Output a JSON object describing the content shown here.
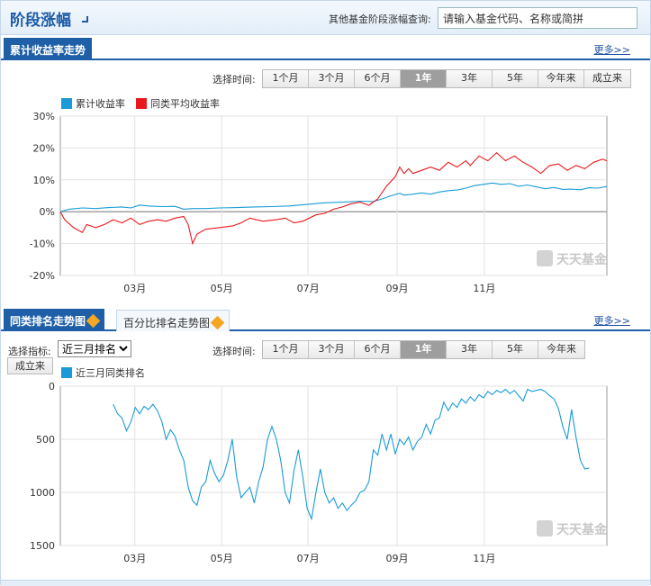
{
  "header": {
    "title": "阶段涨幅",
    "search_label": "其他基金阶段涨幅查询:",
    "search_placeholder": "请输入基金代码、名称或简拼"
  },
  "section1": {
    "tab_label": "累计收益率走势",
    "more_label": "更多>>",
    "time_label": "选择时间:",
    "time_options": [
      "1个月",
      "3个月",
      "6个月",
      "1年",
      "3年",
      "5年",
      "今年来",
      "成立来"
    ],
    "active_index": 3
  },
  "section2": {
    "tab_label": "同类排名走势图",
    "tab2_label": "百分比排名走势图",
    "more_label": "更多>>",
    "indicator_label": "选择指标:",
    "indicator_value": "近三月排名",
    "time_label": "选择时间:",
    "time_options": [
      "1个月",
      "3个月",
      "6个月",
      "1年",
      "3年",
      "5年",
      "今年来"
    ],
    "active_index": 3,
    "since_label": "成立来"
  },
  "colors": {
    "series_blue": "#1a9bd7",
    "series_red": "#e8191c",
    "brand_blue": "#1f5fa7"
  },
  "chart_data": [
    {
      "type": "line",
      "title": "",
      "xlabel": "",
      "ylabel": "",
      "ylim": [
        -20,
        30
      ],
      "y_ticks": [
        30,
        20,
        10,
        0,
        -10,
        -20
      ],
      "y_tick_suffix": "%",
      "x_ticks": [
        "03月",
        "05月",
        "07月",
        "09月",
        "11月"
      ],
      "x_tick_pos": [
        0.169,
        0.366,
        0.562,
        0.764,
        0.962
      ],
      "legend_position": "top-left",
      "grid": true,
      "watermark": "天天基金",
      "series": [
        {
          "name": "累计收益率",
          "color": "#1a9bd7",
          "points": [
            [
              0.0,
              0
            ],
            [
              0.02,
              0.8
            ],
            [
              0.05,
              1.2
            ],
            [
              0.08,
              1.0
            ],
            [
              0.11,
              1.3
            ],
            [
              0.14,
              1.5
            ],
            [
              0.16,
              1.2
            ],
            [
              0.18,
              2.1
            ],
            [
              0.2,
              1.8
            ],
            [
              0.23,
              1.6
            ],
            [
              0.26,
              1.7
            ],
            [
              0.28,
              0.8
            ],
            [
              0.3,
              1.0
            ],
            [
              0.33,
              1.0
            ],
            [
              0.36,
              1.2
            ],
            [
              0.4,
              1.3
            ],
            [
              0.44,
              1.5
            ],
            [
              0.48,
              1.6
            ],
            [
              0.52,
              1.8
            ],
            [
              0.56,
              2.3
            ],
            [
              0.6,
              2.8
            ],
            [
              0.64,
              3.0
            ],
            [
              0.68,
              3.3
            ],
            [
              0.71,
              3.2
            ],
            [
              0.73,
              4.0
            ],
            [
              0.75,
              5.0
            ],
            [
              0.77,
              5.8
            ],
            [
              0.78,
              5.2
            ],
            [
              0.8,
              5.5
            ],
            [
              0.82,
              5.9
            ],
            [
              0.84,
              5.5
            ],
            [
              0.86,
              6.2
            ],
            [
              0.88,
              6.6
            ],
            [
              0.9,
              6.8
            ],
            [
              0.92,
              7.4
            ],
            [
              0.94,
              8.2
            ],
            [
              0.96,
              8.6
            ],
            [
              0.98,
              9.0
            ],
            [
              1.0,
              8.6
            ],
            [
              1.02,
              8.8
            ],
            [
              1.04,
              8.0
            ],
            [
              1.06,
              8.4
            ],
            [
              1.08,
              7.8
            ],
            [
              1.1,
              7.2
            ],
            [
              1.12,
              7.6
            ],
            [
              1.14,
              7.0
            ],
            [
              1.16,
              7.1
            ],
            [
              1.18,
              6.9
            ],
            [
              1.2,
              7.5
            ],
            [
              1.22,
              7.4
            ],
            [
              1.24,
              7.9
            ]
          ]
        },
        {
          "name": "同类平均收益率",
          "color": "#e8191c",
          "points": [
            [
              0.0,
              0
            ],
            [
              0.01,
              -2.5
            ],
            [
              0.03,
              -5.0
            ],
            [
              0.05,
              -6.5
            ],
            [
              0.06,
              -4.0
            ],
            [
              0.08,
              -5.0
            ],
            [
              0.1,
              -4.0
            ],
            [
              0.12,
              -2.5
            ],
            [
              0.14,
              -3.5
            ],
            [
              0.16,
              -2.0
            ],
            [
              0.18,
              -4.0
            ],
            [
              0.2,
              -3.0
            ],
            [
              0.22,
              -2.5
            ],
            [
              0.24,
              -3.0
            ],
            [
              0.26,
              -2.0
            ],
            [
              0.28,
              -1.5
            ],
            [
              0.29,
              -4.0
            ],
            [
              0.3,
              -10.0
            ],
            [
              0.31,
              -7.0
            ],
            [
              0.33,
              -5.5
            ],
            [
              0.36,
              -5.0
            ],
            [
              0.39,
              -4.5
            ],
            [
              0.41,
              -3.5
            ],
            [
              0.43,
              -2.0
            ],
            [
              0.46,
              -3.0
            ],
            [
              0.49,
              -2.5
            ],
            [
              0.51,
              -2.0
            ],
            [
              0.53,
              -3.5
            ],
            [
              0.55,
              -3.0
            ],
            [
              0.58,
              -1.0
            ],
            [
              0.6,
              -0.5
            ],
            [
              0.62,
              0.8
            ],
            [
              0.64,
              1.5
            ],
            [
              0.66,
              2.5
            ],
            [
              0.68,
              3.0
            ],
            [
              0.7,
              2.0
            ],
            [
              0.72,
              4.0
            ],
            [
              0.74,
              8.0
            ],
            [
              0.76,
              11.0
            ],
            [
              0.77,
              14.0
            ],
            [
              0.78,
              12.0
            ],
            [
              0.79,
              13.5
            ],
            [
              0.8,
              12.0
            ],
            [
              0.82,
              13.0
            ],
            [
              0.84,
              14.0
            ],
            [
              0.86,
              13.0
            ],
            [
              0.88,
              15.5
            ],
            [
              0.9,
              14.0
            ],
            [
              0.92,
              16.0
            ],
            [
              0.93,
              14.5
            ],
            [
              0.95,
              17.5
            ],
            [
              0.97,
              16.0
            ],
            [
              0.99,
              18.5
            ],
            [
              1.01,
              16.0
            ],
            [
              1.03,
              17.5
            ],
            [
              1.05,
              15.5
            ],
            [
              1.07,
              14.0
            ],
            [
              1.09,
              12.0
            ],
            [
              1.11,
              14.5
            ],
            [
              1.13,
              15.0
            ],
            [
              1.15,
              13.0
            ],
            [
              1.17,
              14.5
            ],
            [
              1.19,
              13.5
            ],
            [
              1.21,
              15.5
            ],
            [
              1.23,
              16.5
            ],
            [
              1.24,
              16.0
            ]
          ]
        }
      ]
    },
    {
      "type": "line",
      "title": "",
      "xlabel": "",
      "ylabel": "",
      "ylim": [
        0,
        1500
      ],
      "y_inverted": true,
      "y_ticks": [
        0,
        500,
        1000,
        1500
      ],
      "x_ticks": [
        "03月",
        "05月",
        "07月",
        "09月",
        "11月"
      ],
      "x_tick_pos": [
        0.169,
        0.366,
        0.562,
        0.764,
        0.962
      ],
      "legend_position": "top-left",
      "grid": true,
      "watermark": "天天基金",
      "series": [
        {
          "name": "近三月同类排名",
          "color": "#1a9bd7",
          "points": [
            [
              0.12,
              170
            ],
            [
              0.13,
              260
            ],
            [
              0.14,
              300
            ],
            [
              0.15,
              420
            ],
            [
              0.16,
              340
            ],
            [
              0.17,
              200
            ],
            [
              0.18,
              260
            ],
            [
              0.19,
              190
            ],
            [
              0.2,
              220
            ],
            [
              0.21,
              170
            ],
            [
              0.22,
              230
            ],
            [
              0.23,
              330
            ],
            [
              0.24,
              500
            ],
            [
              0.25,
              410
            ],
            [
              0.26,
              470
            ],
            [
              0.27,
              600
            ],
            [
              0.28,
              700
            ],
            [
              0.29,
              950
            ],
            [
              0.3,
              1080
            ],
            [
              0.31,
              1120
            ],
            [
              0.32,
              950
            ],
            [
              0.33,
              900
            ],
            [
              0.34,
              700
            ],
            [
              0.35,
              820
            ],
            [
              0.36,
              900
            ],
            [
              0.37,
              840
            ],
            [
              0.38,
              700
            ],
            [
              0.39,
              500
            ],
            [
              0.4,
              850
            ],
            [
              0.41,
              1050
            ],
            [
              0.42,
              1000
            ],
            [
              0.43,
              950
            ],
            [
              0.44,
              1100
            ],
            [
              0.45,
              900
            ],
            [
              0.46,
              760
            ],
            [
              0.47,
              500
            ],
            [
              0.48,
              380
            ],
            [
              0.49,
              500
            ],
            [
              0.5,
              700
            ],
            [
              0.51,
              1000
            ],
            [
              0.52,
              1100
            ],
            [
              0.53,
              800
            ],
            [
              0.54,
              600
            ],
            [
              0.55,
              850
            ],
            [
              0.56,
              1150
            ],
            [
              0.57,
              1250
            ],
            [
              0.58,
              1000
            ],
            [
              0.59,
              780
            ],
            [
              0.6,
              1000
            ],
            [
              0.61,
              1100
            ],
            [
              0.62,
              1050
            ],
            [
              0.63,
              1150
            ],
            [
              0.64,
              1100
            ],
            [
              0.65,
              1170
            ],
            [
              0.66,
              1120
            ],
            [
              0.67,
              1080
            ],
            [
              0.68,
              1000
            ],
            [
              0.69,
              980
            ],
            [
              0.7,
              900
            ],
            [
              0.71,
              600
            ],
            [
              0.72,
              650
            ],
            [
              0.73,
              450
            ],
            [
              0.74,
              600
            ],
            [
              0.75,
              450
            ],
            [
              0.76,
              640
            ],
            [
              0.77,
              500
            ],
            [
              0.78,
              550
            ],
            [
              0.79,
              480
            ],
            [
              0.8,
              600
            ],
            [
              0.81,
              520
            ],
            [
              0.82,
              480
            ],
            [
              0.83,
              360
            ],
            [
              0.84,
              450
            ],
            [
              0.85,
              320
            ],
            [
              0.86,
              300
            ],
            [
              0.87,
              150
            ],
            [
              0.88,
              230
            ],
            [
              0.89,
              160
            ],
            [
              0.9,
              200
            ],
            [
              0.91,
              120
            ],
            [
              0.92,
              160
            ],
            [
              0.93,
              100
            ],
            [
              0.94,
              140
            ],
            [
              0.95,
              80
            ],
            [
              0.96,
              110
            ],
            [
              0.97,
              50
            ],
            [
              0.98,
              80
            ],
            [
              0.99,
              40
            ],
            [
              1.0,
              60
            ],
            [
              1.01,
              30
            ],
            [
              1.02,
              70
            ],
            [
              1.03,
              40
            ],
            [
              1.04,
              90
            ],
            [
              1.05,
              140
            ],
            [
              1.06,
              30
            ],
            [
              1.07,
              50
            ],
            [
              1.08,
              40
            ],
            [
              1.09,
              30
            ],
            [
              1.1,
              50
            ],
            [
              1.11,
              90
            ],
            [
              1.12,
              120
            ],
            [
              1.13,
              210
            ],
            [
              1.14,
              380
            ],
            [
              1.15,
              500
            ],
            [
              1.16,
              220
            ],
            [
              1.17,
              480
            ],
            [
              1.18,
              700
            ],
            [
              1.19,
              780
            ],
            [
              1.2,
              770
            ]
          ]
        }
      ]
    }
  ]
}
